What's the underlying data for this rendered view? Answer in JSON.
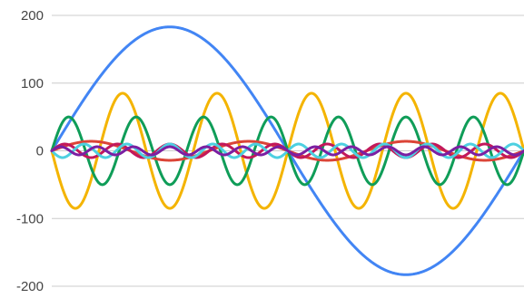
{
  "chart_data": {
    "type": "line",
    "title": "",
    "xlabel": "",
    "ylabel": "",
    "y_ticks": [
      200,
      100,
      0,
      -100,
      -200
    ],
    "y_tick_labels": [
      "200",
      "100",
      "0",
      "-100",
      "-200"
    ],
    "ylim": [
      -200,
      200
    ],
    "xlim": [
      0,
      1
    ],
    "grid": true,
    "legend": "none",
    "series": [
      {
        "color": "#4285F4",
        "amplitude": 183,
        "cycles": 1,
        "phase": 0
      },
      {
        "color": "#F4B400",
        "amplitude": -85,
        "cycles": 5,
        "phase": 0
      },
      {
        "color": "#0F9D58",
        "amplitude": 50,
        "cycles": 7,
        "phase": 0
      },
      {
        "color": "#DB4437",
        "amplitude": 14,
        "cycles": 3,
        "phase": 0
      },
      {
        "color": "#C2185B",
        "amplitude": 10,
        "cycles": 9,
        "phase": 0
      },
      {
        "color": "#4DD0E1",
        "amplitude": -10,
        "cycles": 11,
        "phase": 0
      },
      {
        "color": "#7B1FA2",
        "amplitude": 6,
        "cycles": 13,
        "phase": 0
      }
    ]
  }
}
